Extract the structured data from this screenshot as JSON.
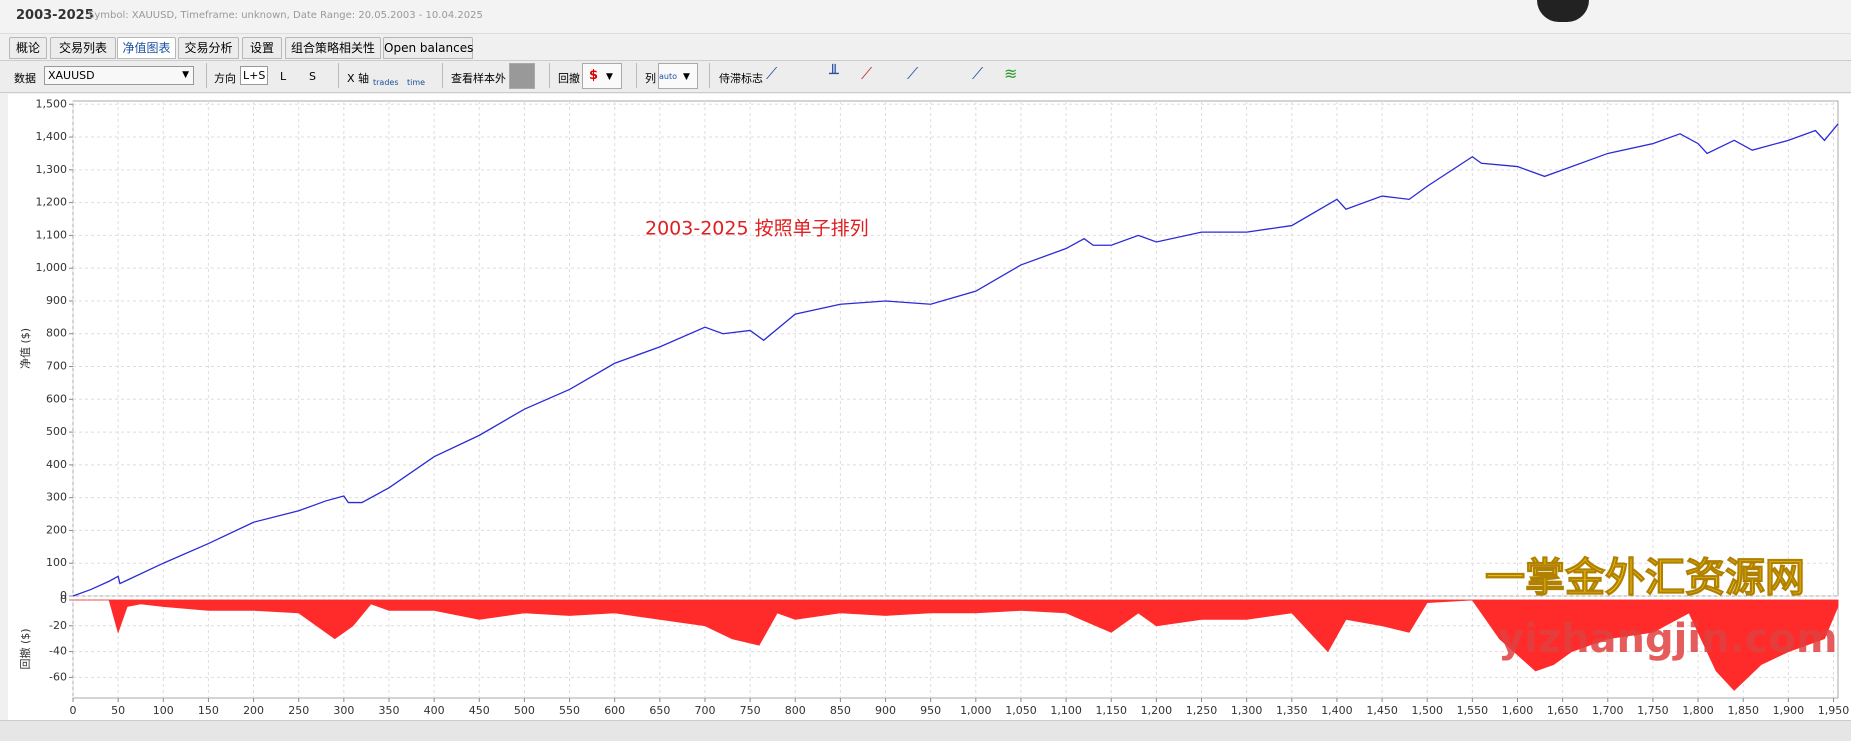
{
  "header": {
    "title": "2003-2025",
    "subtitle": "Symbol: XAUUSD, Timeframe: unknown, Date Range: 20.05.2003 - 10.04.2025"
  },
  "tabs": [
    "概论",
    "交易列表",
    "净值图表",
    "交易分析",
    "设置",
    "组合策略相关性",
    "Open balances"
  ],
  "toolbar": {
    "data_label": "数据",
    "symbol": "XAUUSD",
    "direction_label": "方向",
    "directions": [
      "L+S",
      "L",
      "S"
    ],
    "xaxis_label": "X 轴",
    "xaxis_options": [
      "trades",
      "time"
    ],
    "oos_label": "查看样本外",
    "drawdown_label": "回撤",
    "column_label": "列",
    "column_option": "auto",
    "lag_label": "侍滞标志"
  },
  "watermarks": [
    "一掌金外汇资源网",
    "yizhangjin.com"
  ],
  "chart_data": [
    {
      "type": "line",
      "ylabel": "净值 ($)",
      "annotation": "2003-2025 按照单子排列",
      "color": "#2b2bd6",
      "grid": true,
      "x": [
        0,
        20,
        40,
        50,
        52,
        100,
        150,
        200,
        250,
        280,
        300,
        305,
        320,
        350,
        400,
        450,
        500,
        550,
        600,
        650,
        700,
        720,
        750,
        765,
        800,
        850,
        900,
        950,
        1000,
        1050,
        1100,
        1120,
        1130,
        1150,
        1180,
        1200,
        1250,
        1300,
        1350,
        1400,
        1410,
        1450,
        1480,
        1500,
        1550,
        1560,
        1600,
        1630,
        1650,
        1700,
        1750,
        1780,
        1800,
        1810,
        1840,
        1860,
        1900,
        1930,
        1940,
        1955
      ],
      "values": [
        0,
        20,
        45,
        60,
        38,
        100,
        160,
        225,
        260,
        290,
        305,
        285,
        285,
        330,
        425,
        490,
        570,
        630,
        710,
        760,
        820,
        800,
        810,
        780,
        860,
        890,
        900,
        890,
        930,
        1010,
        1060,
        1090,
        1070,
        1070,
        1100,
        1080,
        1110,
        1110,
        1130,
        1210,
        1180,
        1220,
        1210,
        1250,
        1340,
        1320,
        1310,
        1280,
        1300,
        1350,
        1380,
        1410,
        1380,
        1350,
        1390,
        1360,
        1390,
        1420,
        1390,
        1440
      ],
      "xlim": [
        0,
        1955
      ],
      "ylim": [
        0,
        1510
      ],
      "yticks": [
        0,
        100,
        200,
        300,
        400,
        500,
        600,
        700,
        800,
        900,
        {
          "value": 1000,
          "label": "1,000"
        },
        {
          "value": 1100,
          "label": "1,100"
        },
        {
          "value": 1200,
          "label": "1,200"
        },
        {
          "value": 1300,
          "label": "1,300"
        },
        {
          "value": 1400,
          "label": "1,400"
        },
        {
          "value": 1500,
          "label": "1,500"
        }
      ]
    },
    {
      "type": "area",
      "ylabel": "回撤 ($)",
      "color": "#ff2a2a",
      "grid": true,
      "x": [
        0,
        40,
        50,
        60,
        75,
        100,
        150,
        200,
        250,
        290,
        310,
        330,
        350,
        400,
        450,
        500,
        550,
        600,
        650,
        700,
        730,
        760,
        780,
        800,
        850,
        900,
        950,
        1000,
        1050,
        1100,
        1150,
        1180,
        1200,
        1250,
        1300,
        1350,
        1390,
        1410,
        1450,
        1480,
        1500,
        1550,
        1580,
        1620,
        1640,
        1660,
        1700,
        1750,
        1790,
        1820,
        1840,
        1870,
        1900,
        1940,
        1955
      ],
      "values": [
        0,
        0,
        -25,
        -5,
        -3,
        -5,
        -8,
        -8,
        -10,
        -30,
        -20,
        -3,
        -8,
        -8,
        -15,
        -10,
        -12,
        -10,
        -15,
        -20,
        -30,
        -35,
        -10,
        -15,
        -10,
        -12,
        -10,
        -10,
        -8,
        -10,
        -25,
        -10,
        -20,
        -15,
        -15,
        -10,
        -40,
        -15,
        -20,
        -25,
        -2,
        0,
        -30,
        -55,
        -50,
        -40,
        -30,
        -25,
        -10,
        -55,
        -70,
        -50,
        -40,
        -30,
        -5
      ],
      "xlim": [
        0,
        1955
      ],
      "ylim": [
        -76,
        0
      ],
      "yticks": [
        0,
        -20,
        -40,
        -60
      ],
      "xticks": [
        0,
        50,
        100,
        150,
        200,
        250,
        300,
        350,
        400,
        450,
        500,
        550,
        600,
        650,
        700,
        750,
        800,
        850,
        900,
        950,
        {
          "value": 1000,
          "label": "1,000"
        },
        {
          "value": 1050,
          "label": "1,050"
        },
        {
          "value": 1100,
          "label": "1,100"
        },
        {
          "value": 1150,
          "label": "1,150"
        },
        {
          "value": 1200,
          "label": "1,200"
        },
        {
          "value": 1250,
          "label": "1,250"
        },
        {
          "value": 1300,
          "label": "1,300"
        },
        {
          "value": 1350,
          "label": "1,350"
        },
        {
          "value": 1400,
          "label": "1,400"
        },
        {
          "value": 1450,
          "label": "1,450"
        },
        {
          "value": 1500,
          "label": "1,500"
        },
        {
          "value": 1550,
          "label": "1,550"
        },
        {
          "value": 1600,
          "label": "1,600"
        },
        {
          "value": 1650,
          "label": "1,650"
        },
        {
          "value": 1700,
          "label": "1,700"
        },
        {
          "value": 1750,
          "label": "1,750"
        },
        {
          "value": 1800,
          "label": "1,800"
        },
        {
          "value": 1850,
          "label": "1,850"
        },
        {
          "value": 1900,
          "label": "1,900"
        },
        {
          "value": 1950,
          "label": "1,950"
        }
      ]
    }
  ]
}
